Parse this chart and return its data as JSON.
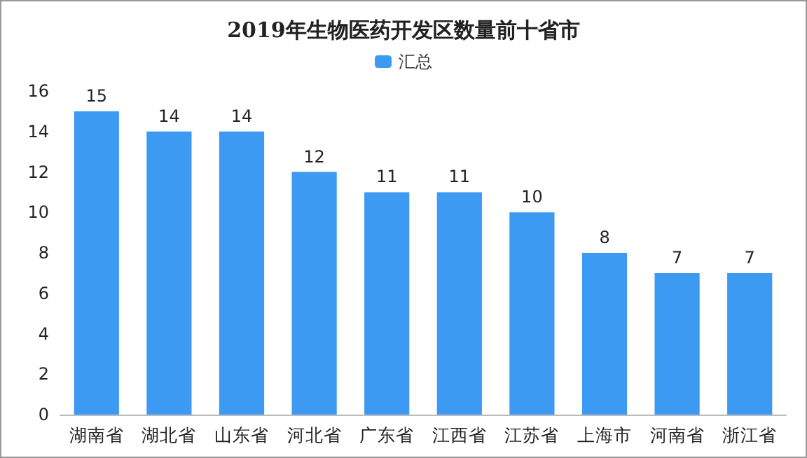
{
  "chart_data": {
    "type": "bar",
    "title": "2019年生物医药开发区数量前十省市",
    "categories": [
      "湖南省",
      "湖北省",
      "山东省",
      "河北省",
      "广东省",
      "江西省",
      "江苏省",
      "上海市",
      "河南省",
      "浙江省"
    ],
    "series": [
      {
        "name": "汇总",
        "color": "#3d9af2",
        "values": [
          15,
          14,
          14,
          12,
          11,
          11,
          10,
          8,
          7,
          7
        ]
      }
    ],
    "ylim": [
      0,
      16
    ],
    "yticks": [
      0,
      2,
      4,
      6,
      8,
      10,
      12,
      14,
      16
    ],
    "grid": false,
    "legend": "top",
    "data_labels": true
  }
}
